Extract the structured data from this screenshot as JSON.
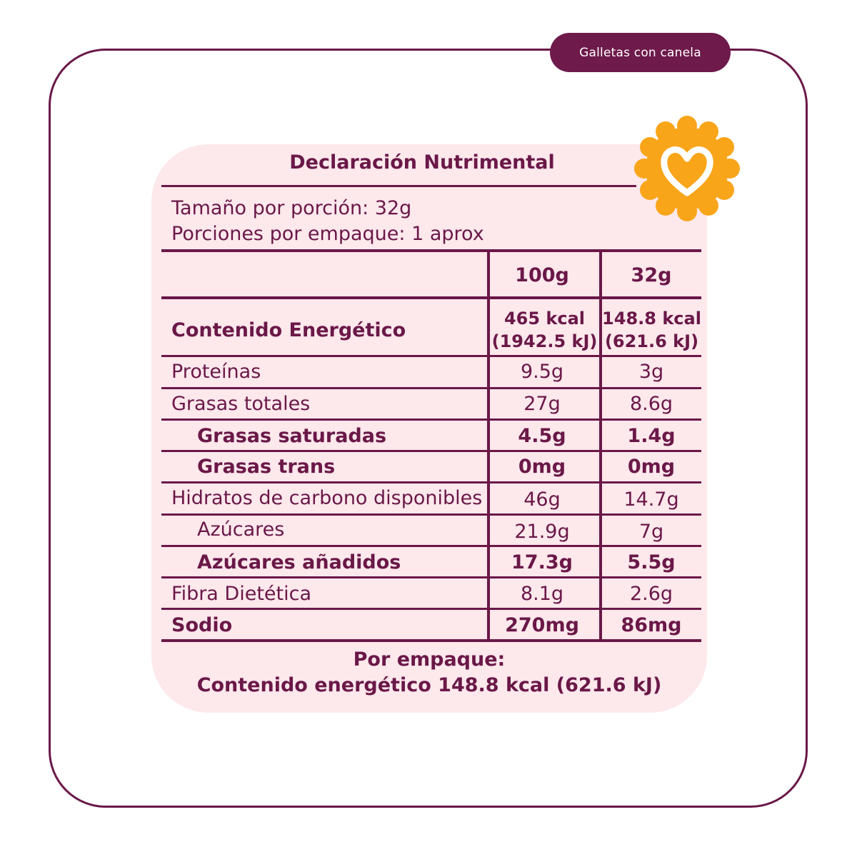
{
  "tag": {
    "label": "Galletas con canela"
  },
  "panel": {
    "title": "Declaración Nutrimental",
    "serving_size": "Tamaño por porción: 32g",
    "servings_per_pack": "Porciones por empaque: 1 aprox",
    "columns": [
      "100g",
      "32g"
    ],
    "energy": {
      "label": "Contenido Energético",
      "col1_kcal": "465 kcal",
      "col1_kj": "(1942.5 kJ)",
      "col2_kcal": "148.8 kcal",
      "col2_kj": "(621.6 kJ)"
    },
    "rows": [
      {
        "label": "Proteínas",
        "v100": "9.5g",
        "vport": "3g"
      },
      {
        "label": "Grasas totales",
        "v100": "27g",
        "vport": "8.6g"
      },
      {
        "label": "Grasas saturadas",
        "v100": "4.5g",
        "vport": "1.4g"
      },
      {
        "label": "Grasas trans",
        "v100": "0mg",
        "vport": "0mg"
      },
      {
        "label": "Hidratos de carbono disponibles",
        "v100": "46g",
        "vport": "14.7g"
      },
      {
        "label": "Azúcares",
        "v100": "21.9g",
        "vport": "7g"
      },
      {
        "label": "Azúcares añadidos",
        "v100": "17.3g",
        "vport": "5.5g"
      },
      {
        "label": "Fibra Dietética",
        "v100": "8.1g",
        "vport": "2.6g"
      },
      {
        "label": "Sodio",
        "v100": "270mg",
        "vport": "86mg"
      }
    ],
    "footer_line1": "Por empaque:",
    "footer_line2": "Contenido energético 148.8 kcal (621.6 kJ)"
  },
  "colors": {
    "primary": "#6a1848",
    "card": "#fde8ec",
    "badge": "#f9a51a"
  },
  "icons": {
    "badge": "heart-icon"
  }
}
